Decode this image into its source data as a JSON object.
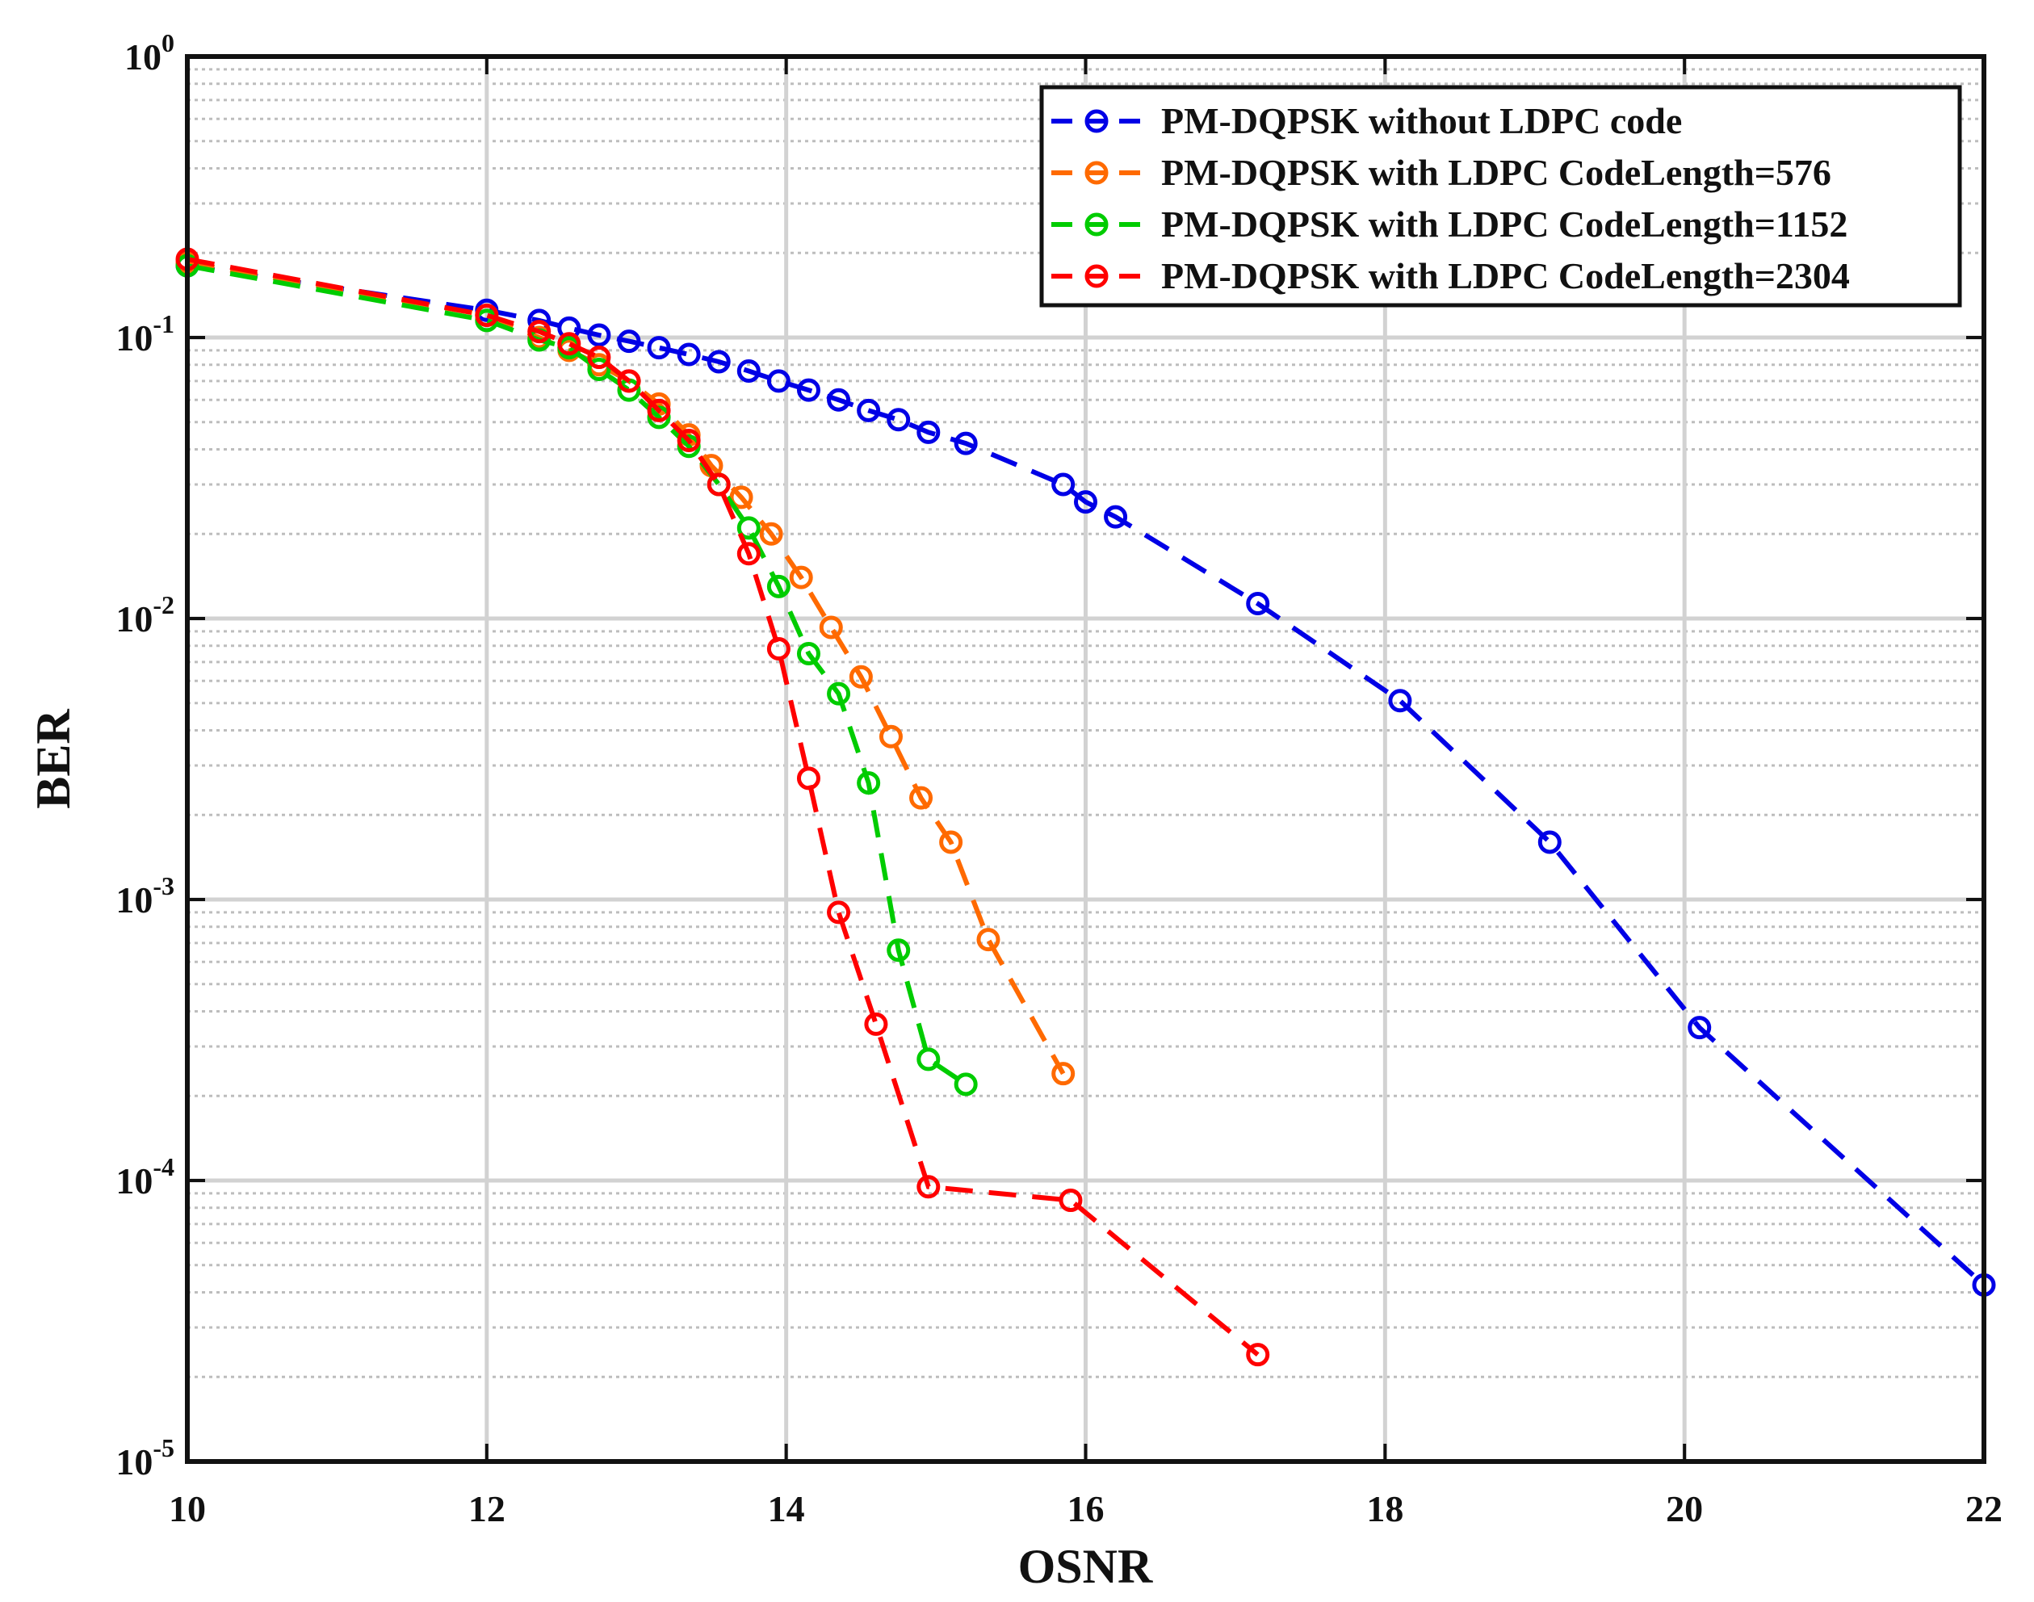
{
  "chart_data": {
    "type": "line",
    "title": "",
    "xlabel": "OSNR",
    "ylabel": "BER",
    "xscale": "linear",
    "yscale": "log",
    "xlim": [
      10,
      22
    ],
    "ylim": [
      1e-05,
      1
    ],
    "xticks": [
      10,
      12,
      14,
      16,
      18,
      20,
      22
    ],
    "xtick_labels": [
      "10",
      "12",
      "14",
      "16",
      "18",
      "20",
      "22"
    ],
    "yticks": [
      {
        "value": 1,
        "base": "10",
        "exp": "0"
      },
      {
        "value": 0.1,
        "base": "10",
        "exp": "-1"
      },
      {
        "value": 0.01,
        "base": "10",
        "exp": "-2"
      },
      {
        "value": 0.001,
        "base": "10",
        "exp": "-3"
      },
      {
        "value": 0.0001,
        "base": "10",
        "exp": "-4"
      },
      {
        "value": 1e-05,
        "base": "10",
        "exp": "-5"
      }
    ],
    "grid": true,
    "minor_grid": true,
    "legend_position": "top-right",
    "series": [
      {
        "name": "PM-DQPSK without LDPC code",
        "color": "#0000e6",
        "x": [
          10,
          12,
          12.35,
          12.55,
          12.75,
          12.95,
          13.15,
          13.35,
          13.55,
          13.75,
          13.95,
          14.15,
          14.35,
          14.55,
          14.75,
          14.95,
          15.2,
          15.85,
          16.0,
          16.2,
          17.15,
          18.1,
          19.1,
          20.1,
          22.0
        ],
        "y": [
          0.18,
          0.125,
          0.115,
          0.108,
          0.102,
          0.097,
          0.092,
          0.087,
          0.082,
          0.076,
          0.07,
          0.065,
          0.06,
          0.055,
          0.051,
          0.046,
          0.042,
          0.03,
          0.026,
          0.023,
          0.0113,
          0.0051,
          0.0016,
          0.00035,
          4.25e-05
        ]
      },
      {
        "name": "PM-DQPSK with LDPC CodeLength=576",
        "color": "#ff6a00",
        "x": [
          10,
          12,
          12.35,
          12.55,
          12.75,
          12.95,
          13.15,
          13.35,
          13.5,
          13.7,
          13.9,
          14.1,
          14.3,
          14.5,
          14.7,
          14.9,
          15.1,
          15.35,
          15.85
        ],
        "y": [
          0.185,
          0.12,
          0.1,
          0.09,
          0.08,
          0.07,
          0.058,
          0.045,
          0.035,
          0.027,
          0.02,
          0.014,
          0.0093,
          0.0062,
          0.0038,
          0.0023,
          0.0016,
          0.00072,
          0.00024
        ]
      },
      {
        "name": "PM-DQPSK with LDPC CodeLength=1152",
        "color": "#00cc00",
        "x": [
          10,
          12,
          12.35,
          12.55,
          12.75,
          12.95,
          13.15,
          13.35,
          13.55,
          13.75,
          13.95,
          14.15,
          14.35,
          14.55,
          14.75,
          14.95,
          15.2
        ],
        "y": [
          0.18,
          0.115,
          0.098,
          0.092,
          0.077,
          0.065,
          0.052,
          0.041,
          0.03,
          0.021,
          0.013,
          0.0075,
          0.0054,
          0.0026,
          0.00066,
          0.00027,
          0.00022
        ]
      },
      {
        "name": "PM-DQPSK with LDPC CodeLength=2304",
        "color": "#ff0000",
        "x": [
          10,
          12,
          12.35,
          12.55,
          12.75,
          12.95,
          13.15,
          13.35,
          13.55,
          13.75,
          13.95,
          14.15,
          14.35,
          14.6,
          14.95,
          15.9,
          17.15
        ],
        "y": [
          0.19,
          0.12,
          0.105,
          0.095,
          0.085,
          0.07,
          0.055,
          0.043,
          0.03,
          0.017,
          0.0078,
          0.0027,
          0.0009,
          0.00036,
          9.5e-05,
          8.5e-05,
          2.4e-05
        ]
      }
    ]
  }
}
